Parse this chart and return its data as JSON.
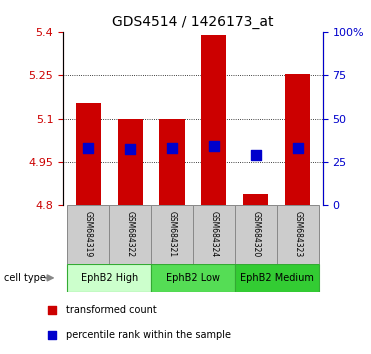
{
  "title": "GDS4514 / 1426173_at",
  "samples": [
    "GSM684319",
    "GSM684322",
    "GSM684321",
    "GSM684324",
    "GSM684320",
    "GSM684323"
  ],
  "bar_tops": [
    5.155,
    5.1,
    5.1,
    5.39,
    4.84,
    5.255
  ],
  "bar_bottom": 4.8,
  "blue_values": [
    5.0,
    4.995,
    5.0,
    5.005,
    4.973,
    5.0
  ],
  "ylim": [
    4.8,
    5.4
  ],
  "yticks_left": [
    4.8,
    4.95,
    5.1,
    5.25,
    5.4
  ],
  "yticks_right": [
    0,
    25,
    50,
    75,
    100
  ],
  "ytick_labels_left": [
    "4.8",
    "4.95",
    "5.1",
    "5.25",
    "5.4"
  ],
  "ytick_labels_right": [
    "0",
    "25",
    "50",
    "75",
    "100%"
  ],
  "grid_values": [
    4.95,
    5.1,
    5.25
  ],
  "bar_color": "#cc0000",
  "blue_color": "#0000cc",
  "bar_width": 0.6,
  "legend_red_label": "transformed count",
  "legend_blue_label": "percentile rank within the sample",
  "cell_type_label": "cell type",
  "left_tick_color": "#cc0000",
  "right_tick_color": "#0000cc",
  "groups": [
    {
      "label": "EphB2 High",
      "start": 0,
      "end": 1,
      "color": "#ccffcc"
    },
    {
      "label": "EphB2 Low",
      "start": 2,
      "end": 3,
      "color": "#55dd55"
    },
    {
      "label": "EphB2 Medium",
      "start": 4,
      "end": 5,
      "color": "#33cc33"
    }
  ],
  "sample_box_color": "#cccccc",
  "sample_box_edge": "#888888"
}
